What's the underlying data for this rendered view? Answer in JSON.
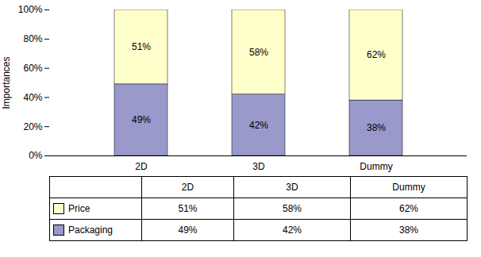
{
  "chart_data": {
    "type": "bar",
    "stacked": true,
    "data_labels": true,
    "legend": "bottom",
    "categories": [
      "2D",
      "3D",
      "Dummy"
    ],
    "ylabel": "Importances",
    "ylim": [
      0,
      100
    ],
    "yticks": [
      {
        "value": 0,
        "label": "0%"
      },
      {
        "value": 20,
        "label": "20%"
      },
      {
        "value": 40,
        "label": "40%"
      },
      {
        "value": 60,
        "label": "60%"
      },
      {
        "value": 80,
        "label": "80%"
      },
      {
        "value": 100,
        "label": "100%"
      }
    ],
    "series": [
      {
        "name": "Packaging",
        "color": "#9999CC",
        "values": [
          49,
          42,
          38
        ],
        "value_labels": [
          "49%",
          "42%",
          "38%"
        ]
      },
      {
        "name": "Price",
        "color": "#FFFFCC",
        "values": [
          51,
          58,
          62
        ],
        "value_labels": [
          "51%",
          "58%",
          "62%"
        ]
      }
    ]
  }
}
